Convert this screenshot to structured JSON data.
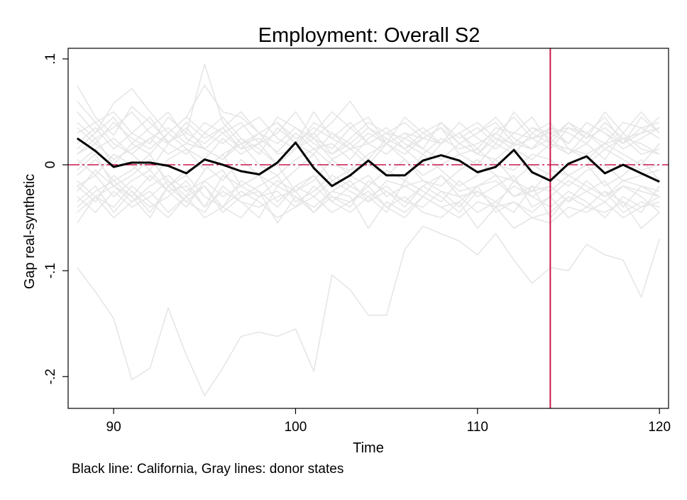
{
  "chart_data": {
    "type": "line",
    "title": "Employment: Overall S2",
    "xlabel": "Time",
    "ylabel": "Gap real-synthetic",
    "note": "Black line: California, Gray lines: donor states",
    "xlim": [
      87.5,
      120.5
    ],
    "ylim": [
      -0.23,
      0.11
    ],
    "x_ticks": [
      {
        "value": 90,
        "label": "90"
      },
      {
        "value": 100,
        "label": "100"
      },
      {
        "value": 110,
        "label": "110"
      },
      {
        "value": 120,
        "label": "120"
      }
    ],
    "y_ticks": [
      {
        "value": 0.1,
        "label": ".1"
      },
      {
        "value": 0,
        "label": "0"
      },
      {
        "value": -0.1,
        "label": "-.1"
      },
      {
        "value": -0.2,
        "label": "-.2"
      }
    ],
    "grid": false,
    "reference_lines": {
      "vertical_x": 114,
      "horizontal_y": 0,
      "color": "#c8194b"
    },
    "x": [
      88,
      89,
      90,
      91,
      92,
      93,
      94,
      95,
      96,
      97,
      98,
      99,
      100,
      101,
      102,
      103,
      104,
      105,
      106,
      107,
      108,
      109,
      110,
      111,
      112,
      113,
      114,
      115,
      116,
      117,
      118,
      119,
      120
    ],
    "series": [
      {
        "role": "treated",
        "color": "#000000",
        "values": [
          0.025,
          0.013,
          -0.002,
          0.002,
          0.002,
          -0.001,
          -0.008,
          0.005,
          0.0,
          -0.006,
          -0.009,
          0.002,
          0.021,
          -0.003,
          -0.02,
          -0.01,
          0.004,
          -0.01,
          -0.01,
          0.004,
          0.009,
          0.004,
          -0.007,
          -0.002,
          0.014,
          -0.007,
          -0.015,
          0.001,
          0.008,
          -0.008,
          0.0,
          -0.008,
          -0.016
        ]
      },
      {
        "role": "donor",
        "color": "#e6e6e6",
        "values": [
          -0.097,
          -0.12,
          -0.145,
          -0.203,
          -0.192,
          -0.135,
          -0.18,
          -0.218,
          -0.192,
          -0.162,
          -0.158,
          -0.162,
          -0.155,
          -0.195,
          -0.104,
          -0.118,
          -0.142,
          -0.142,
          -0.08,
          -0.058,
          -0.065,
          -0.072,
          -0.085,
          -0.065,
          -0.09,
          -0.112,
          -0.097,
          -0.1,
          -0.075,
          -0.085,
          -0.09,
          -0.125,
          -0.07
        ]
      },
      {
        "role": "donor",
        "color": "#e6e6e6",
        "values": [
          0.075,
          0.045,
          0.028,
          0.055,
          0.04,
          0.022,
          0.03,
          0.095,
          0.04,
          0.02,
          0.025,
          0.012,
          0.03,
          0.015,
          0.02,
          0.005,
          0.025,
          0.035,
          0.02,
          0.01,
          0.025,
          0.015,
          0.02,
          0.03,
          0.018,
          0.025,
          0.035,
          0.03,
          0.02,
          0.04,
          0.025,
          0.03,
          0.045
        ]
      },
      {
        "role": "donor",
        "color": "#e6e6e6",
        "values": [
          -0.055,
          -0.03,
          -0.04,
          -0.02,
          -0.035,
          -0.05,
          -0.03,
          -0.02,
          -0.045,
          -0.03,
          -0.025,
          -0.055,
          -0.03,
          -0.04,
          -0.025,
          -0.03,
          -0.06,
          -0.035,
          -0.045,
          -0.03,
          -0.04,
          -0.05,
          -0.035,
          -0.04,
          -0.06,
          -0.05,
          -0.055,
          -0.04,
          -0.045,
          -0.035,
          -0.05,
          -0.04,
          -0.03
        ]
      },
      {
        "role": "donor",
        "color": "#e6e6e6",
        "values": [
          0.05,
          0.03,
          0.058,
          0.072,
          0.05,
          0.03,
          0.045,
          0.075,
          0.05,
          0.045,
          0.03,
          0.02,
          0.035,
          0.025,
          0.04,
          0.06,
          0.035,
          0.02,
          0.03,
          0.025,
          0.02,
          0.03,
          0.015,
          0.035,
          0.03,
          0.025,
          0.03,
          0.035,
          0.025,
          0.05,
          0.03,
          0.05,
          0.03
        ]
      },
      {
        "role": "donor",
        "color": "#e6e6e6",
        "values": [
          -0.04,
          -0.025,
          -0.015,
          -0.03,
          -0.05,
          -0.02,
          -0.035,
          -0.045,
          -0.02,
          -0.035,
          -0.04,
          -0.03,
          -0.025,
          -0.045,
          -0.03,
          -0.035,
          -0.02,
          -0.04,
          -0.03,
          -0.045,
          -0.05,
          -0.035,
          -0.06,
          -0.04,
          -0.035,
          -0.045,
          -0.03,
          -0.05,
          -0.04,
          -0.045,
          -0.035,
          -0.06,
          -0.045
        ]
      },
      {
        "role": "donor",
        "color": "#e6e6e6",
        "values": [
          0.02,
          0.035,
          0.015,
          0.03,
          0.045,
          0.02,
          0.01,
          0.03,
          0.045,
          0.025,
          0.01,
          0.035,
          0.02,
          0.05,
          0.025,
          0.015,
          0.03,
          0.02,
          0.045,
          0.03,
          0.02,
          0.04,
          0.025,
          0.015,
          0.03,
          0.045,
          0.02,
          0.01,
          0.03,
          0.015,
          0.025,
          0.02,
          0.01
        ]
      },
      {
        "role": "donor",
        "color": "#e6e6e6",
        "values": [
          -0.02,
          -0.01,
          -0.03,
          -0.015,
          -0.005,
          -0.025,
          -0.02,
          -0.04,
          -0.01,
          -0.02,
          -0.03,
          -0.015,
          -0.025,
          -0.01,
          -0.035,
          -0.02,
          -0.01,
          -0.03,
          -0.02,
          -0.015,
          -0.025,
          -0.04,
          -0.02,
          -0.01,
          -0.03,
          -0.025,
          -0.02,
          -0.035,
          -0.015,
          -0.03,
          -0.02,
          -0.025,
          -0.03
        ]
      },
      {
        "role": "donor",
        "color": "#e6e6e6",
        "values": [
          0.01,
          0.02,
          0.005,
          0.015,
          0.025,
          0.01,
          0.02,
          0.015,
          0.005,
          0.02,
          0.03,
          0.01,
          0.015,
          0.025,
          0.005,
          0.015,
          0.02,
          0.01,
          0.025,
          0.015,
          0.005,
          0.02,
          0.01,
          0.025,
          0.015,
          0.005,
          0.02,
          0.015,
          0.01,
          0.02,
          0.025,
          0.01,
          0.015
        ]
      },
      {
        "role": "donor",
        "color": "#e6e6e6",
        "values": [
          -0.01,
          0.005,
          -0.015,
          -0.005,
          0.01,
          -0.02,
          -0.005,
          0.0,
          -0.015,
          0.005,
          -0.01,
          -0.02,
          -0.005,
          0.01,
          -0.015,
          -0.005,
          0.0,
          -0.01,
          0.005,
          -0.015,
          -0.02,
          -0.005,
          0.005,
          -0.01,
          -0.015,
          0.0,
          -0.01,
          -0.02,
          -0.005,
          0.0,
          -0.015,
          -0.01,
          -0.005
        ]
      },
      {
        "role": "donor",
        "color": "#e6e6e6",
        "values": [
          0.03,
          0.04,
          0.02,
          0.01,
          0.025,
          0.035,
          0.02,
          0.04,
          0.03,
          0.015,
          0.02,
          0.045,
          0.035,
          0.02,
          0.01,
          0.025,
          0.04,
          0.03,
          0.015,
          0.025,
          0.035,
          0.02,
          0.01,
          0.03,
          0.045,
          0.025,
          0.015,
          0.035,
          0.03,
          0.02,
          0.04,
          0.035,
          0.025
        ]
      },
      {
        "role": "donor",
        "color": "#e6e6e6",
        "values": [
          -0.03,
          -0.045,
          -0.025,
          -0.04,
          -0.03,
          -0.015,
          -0.035,
          -0.02,
          -0.04,
          -0.05,
          -0.03,
          -0.025,
          -0.04,
          -0.02,
          -0.035,
          -0.045,
          -0.03,
          -0.02,
          -0.035,
          -0.04,
          -0.025,
          -0.03,
          -0.045,
          -0.035,
          -0.02,
          -0.03,
          -0.04,
          -0.025,
          -0.035,
          -0.05,
          -0.03,
          -0.04,
          -0.035
        ]
      },
      {
        "role": "donor",
        "color": "#e6e6e6",
        "values": [
          0.0,
          0.015,
          0.025,
          0.01,
          -0.005,
          0.02,
          0.035,
          0.015,
          0.005,
          0.025,
          0.015,
          0.0,
          0.02,
          0.01,
          0.03,
          0.015,
          0.0,
          0.02,
          0.01,
          0.025,
          0.035,
          0.01,
          0.0,
          0.02,
          0.01,
          0.03,
          0.04,
          0.015,
          0.005,
          0.02,
          0.01,
          0.0,
          0.02
        ]
      },
      {
        "role": "donor",
        "color": "#e6e6e6",
        "values": [
          -0.015,
          -0.03,
          -0.02,
          -0.035,
          -0.02,
          -0.01,
          -0.025,
          -0.015,
          -0.03,
          -0.02,
          -0.01,
          -0.035,
          -0.02,
          -0.03,
          -0.015,
          -0.025,
          -0.035,
          -0.015,
          -0.02,
          -0.03,
          -0.01,
          -0.025,
          -0.02,
          -0.015,
          -0.03,
          -0.02,
          -0.025,
          -0.01,
          -0.02,
          -0.03,
          -0.015,
          -0.02,
          -0.025
        ]
      },
      {
        "role": "donor",
        "color": "#e6e6e6",
        "values": [
          0.04,
          0.025,
          0.035,
          0.05,
          0.03,
          0.02,
          0.04,
          0.025,
          0.035,
          0.015,
          0.03,
          0.04,
          0.02,
          0.035,
          0.025,
          0.04,
          0.02,
          0.03,
          0.025,
          0.035,
          0.02,
          0.03,
          0.04,
          0.025,
          0.02,
          0.035,
          0.03,
          0.02,
          0.04,
          0.03,
          0.02,
          0.035,
          0.04
        ]
      },
      {
        "role": "donor",
        "color": "#e6e6e6",
        "values": [
          -0.045,
          -0.03,
          -0.05,
          -0.035,
          -0.025,
          -0.045,
          -0.03,
          -0.05,
          -0.04,
          -0.025,
          -0.035,
          -0.05,
          -0.04,
          -0.03,
          -0.045,
          -0.035,
          -0.025,
          -0.04,
          -0.05,
          -0.03,
          -0.04,
          -0.035,
          -0.02,
          -0.045,
          -0.035,
          -0.05,
          -0.045,
          -0.03,
          -0.04,
          -0.025,
          -0.045,
          -0.035,
          -0.04
        ]
      },
      {
        "role": "donor",
        "color": "#e6e6e6",
        "values": [
          0.005,
          -0.01,
          0.01,
          0.0,
          -0.015,
          0.005,
          0.015,
          -0.005,
          0.01,
          0.02,
          0.0,
          -0.01,
          0.005,
          0.015,
          0.0,
          -0.005,
          0.01,
          0.02,
          0.005,
          -0.01,
          0.0,
          0.01,
          0.015,
          0.0,
          -0.005,
          0.01,
          0.005,
          -0.01,
          0.0,
          0.015,
          0.005,
          -0.005,
          0.0
        ]
      },
      {
        "role": "donor",
        "color": "#e6e6e6",
        "values": [
          0.015,
          0.03,
          0.045,
          0.02,
          0.035,
          0.05,
          0.025,
          0.015,
          0.03,
          0.04,
          0.02,
          0.03,
          0.05,
          0.025,
          0.015,
          0.035,
          0.045,
          0.02,
          0.03,
          0.015,
          0.04,
          0.025,
          0.035,
          0.02,
          0.05,
          0.03,
          0.02,
          0.04,
          0.025,
          0.035,
          0.02,
          0.045,
          0.03
        ]
      },
      {
        "role": "donor",
        "color": "#e6e6e6",
        "values": [
          -0.025,
          -0.005,
          -0.02,
          -0.03,
          -0.01,
          -0.025,
          -0.04,
          -0.015,
          -0.005,
          -0.03,
          -0.02,
          -0.01,
          -0.035,
          -0.025,
          -0.01,
          -0.02,
          -0.03,
          -0.045,
          -0.015,
          -0.025,
          -0.035,
          -0.015,
          -0.03,
          -0.02,
          -0.01,
          -0.04,
          -0.03,
          -0.015,
          -0.025,
          -0.035,
          -0.02,
          -0.03,
          -0.045
        ]
      },
      {
        "role": "donor",
        "color": "#e6e6e6",
        "values": [
          0.06,
          0.04,
          0.05,
          0.03,
          0.02,
          0.045,
          0.03,
          0.02,
          0.035,
          0.05,
          0.03,
          0.04,
          0.025,
          0.03,
          0.05,
          0.035,
          0.02,
          0.03,
          0.04,
          0.025,
          0.035,
          0.02,
          0.03,
          0.04,
          0.02,
          0.035,
          0.025,
          0.04,
          0.03,
          0.045,
          0.02,
          0.03,
          0.035
        ]
      },
      {
        "role": "donor",
        "color": "#e6e6e6",
        "values": [
          -0.035,
          -0.02,
          -0.045,
          -0.025,
          -0.04,
          -0.03,
          -0.015,
          -0.04,
          -0.025,
          -0.035,
          -0.05,
          -0.02,
          -0.03,
          -0.045,
          -0.025,
          -0.015,
          -0.035,
          -0.025,
          -0.04,
          -0.02,
          -0.03,
          -0.045,
          -0.025,
          -0.035,
          -0.045,
          -0.02,
          -0.05,
          -0.03,
          -0.04,
          -0.025,
          -0.035,
          -0.045,
          -0.02
        ]
      },
      {
        "role": "donor",
        "color": "#e6e6e6",
        "values": [
          0.01,
          0.025,
          0.0,
          0.02,
          0.01,
          0.03,
          0.015,
          0.005,
          0.025,
          0.01,
          0.02,
          0.0,
          0.015,
          0.03,
          0.01,
          0.02,
          0.005,
          0.025,
          0.015,
          0.0,
          0.02,
          0.03,
          0.01,
          0.005,
          0.02,
          0.015,
          0.025,
          0.01,
          0.02,
          0.005,
          0.03,
          0.015,
          0.01
        ]
      },
      {
        "role": "donor",
        "color": "#e6e6e6",
        "values": [
          -0.005,
          0.01,
          -0.02,
          -0.01,
          0.005,
          -0.015,
          -0.03,
          -0.005,
          0.01,
          -0.02,
          -0.01,
          0.0,
          -0.025,
          -0.015,
          0.005,
          -0.01,
          -0.02,
          -0.005,
          -0.015,
          0.01,
          -0.005,
          -0.02,
          -0.01,
          0.005,
          -0.015,
          -0.025,
          -0.005,
          -0.01,
          0.0,
          -0.02,
          -0.01,
          0.005,
          -0.015
        ]
      },
      {
        "role": "donor",
        "color": "#e6e6e6",
        "values": [
          0.035,
          0.02,
          0.04,
          0.025,
          0.015,
          0.03,
          0.045,
          0.03,
          0.02,
          0.035,
          0.045,
          0.025,
          0.015,
          0.04,
          0.03,
          0.02,
          0.035,
          0.025,
          0.015,
          0.03,
          0.04,
          0.02,
          0.03,
          0.045,
          0.025,
          0.015,
          0.035,
          0.02,
          0.04,
          0.03,
          0.015,
          0.025,
          0.035
        ]
      },
      {
        "role": "donor",
        "color": "#e6e6e6",
        "values": [
          -0.02,
          -0.035,
          -0.01,
          -0.025,
          -0.045,
          -0.02,
          -0.01,
          -0.03,
          -0.04,
          -0.015,
          -0.025,
          -0.04,
          -0.02,
          -0.01,
          -0.03,
          -0.04,
          -0.015,
          -0.025,
          -0.035,
          -0.02,
          -0.01,
          -0.03,
          -0.025,
          -0.04,
          -0.015,
          -0.03,
          -0.02,
          -0.035,
          -0.025,
          -0.015,
          -0.04,
          -0.02,
          -0.03
        ]
      }
    ]
  }
}
